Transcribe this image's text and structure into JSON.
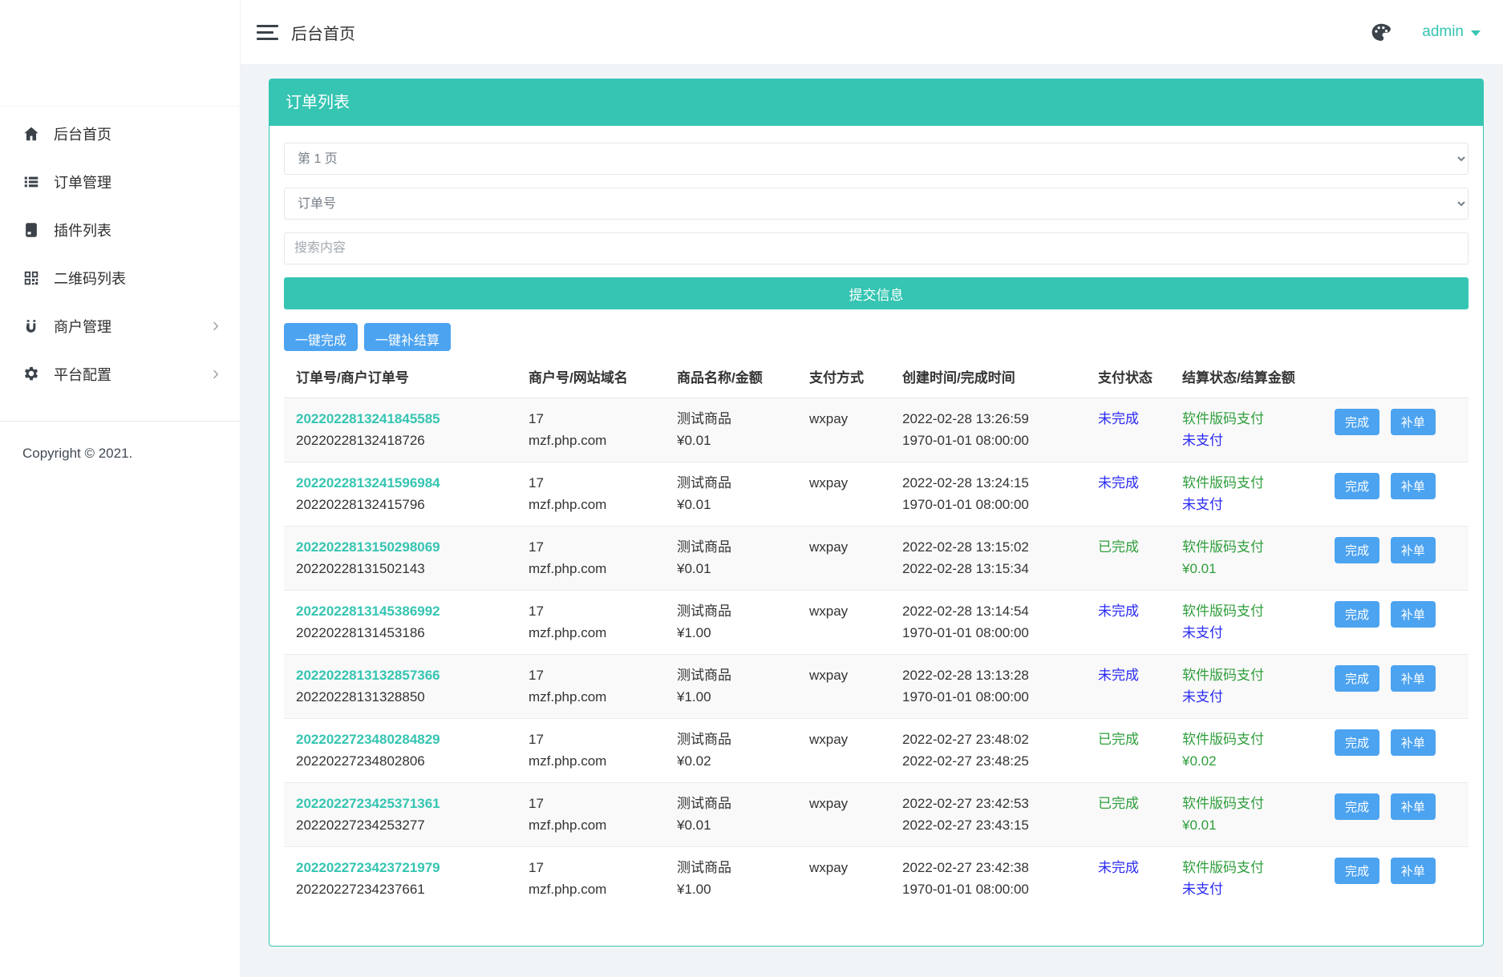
{
  "header": {
    "title": "后台首页",
    "user": "admin"
  },
  "sidebar": {
    "items": [
      {
        "id": "home",
        "label": "后台首页",
        "icon": "home-icon",
        "expandable": false
      },
      {
        "id": "orders",
        "label": "订单管理",
        "icon": "order-list-icon",
        "expandable": false
      },
      {
        "id": "plugins",
        "label": "插件列表",
        "icon": "plugin-book-icon",
        "expandable": false
      },
      {
        "id": "qrcodes",
        "label": "二维码列表",
        "icon": "qrcode-icon",
        "expandable": false
      },
      {
        "id": "merchants",
        "label": "商户管理",
        "icon": "merchant-icon",
        "expandable": true
      },
      {
        "id": "platform",
        "label": "平台配置",
        "icon": "gear-icon",
        "expandable": true
      }
    ],
    "copyright": "Copyright © 2021."
  },
  "panel": {
    "title": "订单列表",
    "filters": {
      "page_select": "第 1 页",
      "field_select": "订单号",
      "search_placeholder": "搜索内容",
      "submit_label": "提交信息"
    },
    "bulk_actions": {
      "complete_all": "一键完成",
      "settle_all": "一键补结算"
    },
    "table": {
      "columns": [
        "订单号/商户订单号",
        "商户号/网站域名",
        "商品名称/金额",
        "支付方式",
        "创建时间/完成时间",
        "支付状态",
        "结算状态/结算金额",
        ""
      ],
      "row_actions": {
        "complete": "完成",
        "reissue": "补单"
      },
      "rows": [
        {
          "order_no": "2022022813241845585",
          "merchant_order_no": "20220228132418726",
          "merchant_id": "17",
          "domain": "mzf.php.com",
          "product": "测试商品",
          "amount": "¥0.01",
          "pay_method": "wxpay",
          "created_at": "2022-02-28 13:26:59",
          "finished_at": "1970-01-01 08:00:00",
          "pay_status": "未完成",
          "pay_status_color": "blue",
          "settle_channel": "软件版码支付",
          "settle_value": "未支付",
          "settle_value_color": "blue"
        },
        {
          "order_no": "2022022813241596984",
          "merchant_order_no": "20220228132415796",
          "merchant_id": "17",
          "domain": "mzf.php.com",
          "product": "测试商品",
          "amount": "¥0.01",
          "pay_method": "wxpay",
          "created_at": "2022-02-28 13:24:15",
          "finished_at": "1970-01-01 08:00:00",
          "pay_status": "未完成",
          "pay_status_color": "blue",
          "settle_channel": "软件版码支付",
          "settle_value": "未支付",
          "settle_value_color": "blue"
        },
        {
          "order_no": "2022022813150298069",
          "merchant_order_no": "20220228131502143",
          "merchant_id": "17",
          "domain": "mzf.php.com",
          "product": "测试商品",
          "amount": "¥0.01",
          "pay_method": "wxpay",
          "created_at": "2022-02-28 13:15:02",
          "finished_at": "2022-02-28 13:15:34",
          "pay_status": "已完成",
          "pay_status_color": "green",
          "settle_channel": "软件版码支付",
          "settle_value": "¥0.01",
          "settle_value_color": "green"
        },
        {
          "order_no": "2022022813145386992",
          "merchant_order_no": "20220228131453186",
          "merchant_id": "17",
          "domain": "mzf.php.com",
          "product": "测试商品",
          "amount": "¥1.00",
          "pay_method": "wxpay",
          "created_at": "2022-02-28 13:14:54",
          "finished_at": "1970-01-01 08:00:00",
          "pay_status": "未完成",
          "pay_status_color": "blue",
          "settle_channel": "软件版码支付",
          "settle_value": "未支付",
          "settle_value_color": "blue"
        },
        {
          "order_no": "2022022813132857366",
          "merchant_order_no": "20220228131328850",
          "merchant_id": "17",
          "domain": "mzf.php.com",
          "product": "测试商品",
          "amount": "¥1.00",
          "pay_method": "wxpay",
          "created_at": "2022-02-28 13:13:28",
          "finished_at": "1970-01-01 08:00:00",
          "pay_status": "未完成",
          "pay_status_color": "blue",
          "settle_channel": "软件版码支付",
          "settle_value": "未支付",
          "settle_value_color": "blue"
        },
        {
          "order_no": "2022022723480284829",
          "merchant_order_no": "20220227234802806",
          "merchant_id": "17",
          "domain": "mzf.php.com",
          "product": "测试商品",
          "amount": "¥0.02",
          "pay_method": "wxpay",
          "created_at": "2022-02-27 23:48:02",
          "finished_at": "2022-02-27 23:48:25",
          "pay_status": "已完成",
          "pay_status_color": "green",
          "settle_channel": "软件版码支付",
          "settle_value": "¥0.02",
          "settle_value_color": "green"
        },
        {
          "order_no": "2022022723425371361",
          "merchant_order_no": "20220227234253277",
          "merchant_id": "17",
          "domain": "mzf.php.com",
          "product": "测试商品",
          "amount": "¥0.01",
          "pay_method": "wxpay",
          "created_at": "2022-02-27 23:42:53",
          "finished_at": "2022-02-27 23:43:15",
          "pay_status": "已完成",
          "pay_status_color": "green",
          "settle_channel": "软件版码支付",
          "settle_value": "¥0.01",
          "settle_value_color": "green"
        },
        {
          "order_no": "2022022723423721979",
          "merchant_order_no": "20220227234237661",
          "merchant_id": "17",
          "domain": "mzf.php.com",
          "product": "测试商品",
          "amount": "¥1.00",
          "pay_method": "wxpay",
          "created_at": "2022-02-27 23:42:38",
          "finished_at": "1970-01-01 08:00:00",
          "pay_status": "未完成",
          "pay_status_color": "blue",
          "settle_channel": "软件版码支付",
          "settle_value": "未支付",
          "settle_value_color": "blue"
        }
      ]
    }
  },
  "colors": {
    "teal": "#35c5b2",
    "status_blue": "#2a2af2",
    "status_green": "#2f9e3c",
    "button_blue": "#4ca3f0",
    "content_background": "#f1f4f7"
  }
}
